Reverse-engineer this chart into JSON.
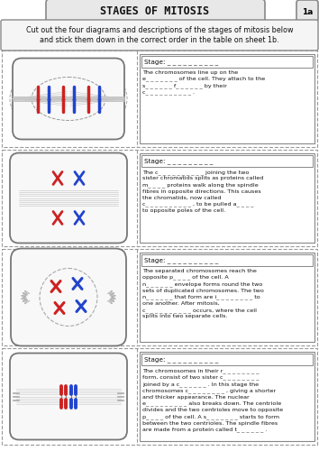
{
  "title": "STAGES OF MITOSIS",
  "label_1a": "1a",
  "instruction": "Cut out the four diagrams and descriptions of the stages of mitosis below\nand stick them down in the correct order in the table on sheet 1b.",
  "bg_color": "#f5f5f5",
  "outer_bg": "#ffffff",
  "boxes": [
    {
      "stage_label": "Stage: _ _ _ _ _ _ _ _ _ _",
      "text": "The chromosomes line up on the\ne_ _ _ _ _ _ _ of the cell. They attach to the\ns_ _ _ _ _ _ f_ _ _ _ _ _ by their\nc_ _ _ _ _ _ _ _ _ _ ."
    },
    {
      "stage_label": "Stage: _ _ _ _ _ _ _ _ _",
      "text": "The c_ _ _ _ _ _ _ _ _ _ joining the two\nsister chromatids splits as proteins called\nm_ _ _ _ proteins walk along the spindle\nfibres in opposite directions. This causes\nthe chromatids, now called\nc_ _ _ _ _ _ _ _ _ _ , to be pulled a_ _ _ _\nto opposite poles of the cell."
    },
    {
      "stage_label": "Stage: _ _ _ _ _ _ _ _ _ _",
      "text": "The separated chromosomes reach the\nopposite p_ _ _ _ of the cell. A\nn_ _ _ _ _ _ envelope forms round the two\nsets of duplicated chromosomes. The two\nn_ _ _ _ _ _ that form are i_ _ _ _ _ _ _ _ to\none another. After mitosis,\nc_ _ _ _ _ _ _ _ _ _ occurs, where the cell\nsplits into two separate cells."
    },
    {
      "stage_label": "Stage: _ _ _ _ _ _ _ _ _ _",
      "text": "The chromosomes in their r_ _ _ _ _ _ _ _\nform, consist of two sister c_ _ _ _ _ _ _ _\njoined by a c_ _ _ _ _ _ . In this stage the\nchromosomes c_ _ _ _ _ _ _ _ , giving a shorter\nand thicker appearance. The nuclear\ne_ _ _ _ _ _ _ _ _ also breaks down. The centriole\ndivides and the two centrioles move to opposite\np_ _ _ _ of the cell. A s_ _ _ _ _ _ _ starts to form\nbetween the two centrioles. The spindle fibres\nare made from a protein called t_ _ _ _ _ _ ."
    }
  ]
}
